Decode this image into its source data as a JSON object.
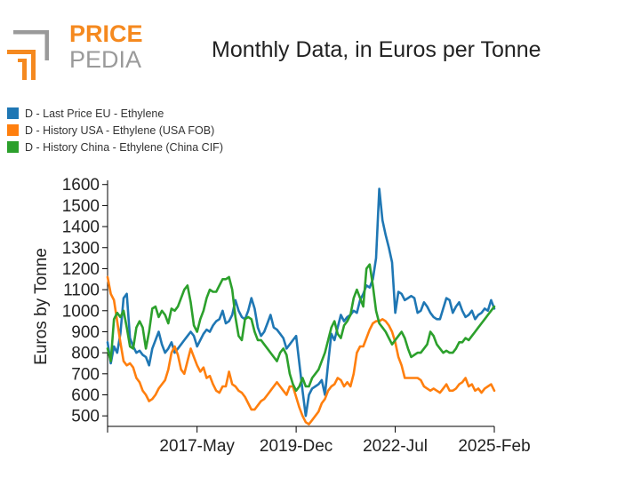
{
  "logo": {
    "line1": "PRICE",
    "line2": "PEDIA",
    "colors": {
      "accent": "#f5891f",
      "gray": "#9a9a9a"
    }
  },
  "title": "Monthly Data, in Euros per Tonne",
  "legend": [
    {
      "label": "D - Last Price EU - Ethylene",
      "color": "#1f77b4"
    },
    {
      "label": "D - History USA - Ethylene (USA FOB)",
      "color": "#ff7f0e"
    },
    {
      "label": "D - History China - Ethylene (China CIF)",
      "color": "#2ca02c"
    }
  ],
  "chart_data": {
    "type": "line",
    "title": "Monthly Data, in Euros per Tonne",
    "xlabel": "",
    "ylabel": "Euros by Tonne",
    "x_start": "2015-01",
    "xlim_index": [
      0,
      121
    ],
    "xticks": [
      {
        "index": 0,
        "label": ""
      },
      {
        "index": 28,
        "label": "2017-May"
      },
      {
        "index": 59,
        "label": "2019-Dec"
      },
      {
        "index": 90,
        "label": "2022-Jul"
      },
      {
        "index": 121,
        "label": "2025-Feb"
      }
    ],
    "ylim": [
      450,
      1620
    ],
    "yticks": [
      500,
      600,
      700,
      800,
      900,
      1000,
      1100,
      1200,
      1300,
      1400,
      1500,
      1600
    ],
    "grid": false,
    "series": [
      {
        "name": "D - Last Price EU - Ethylene",
        "color": "#1f77b4",
        "values": [
          850,
          750,
          830,
          800,
          890,
          1060,
          1080,
          870,
          830,
          800,
          810,
          790,
          780,
          740,
          820,
          860,
          900,
          840,
          800,
          820,
          850,
          800,
          820,
          840,
          860,
          880,
          900,
          880,
          830,
          860,
          890,
          910,
          900,
          930,
          950,
          960,
          1000,
          940,
          950,
          980,
          1050,
          1000,
          970,
          960,
          1000,
          1060,
          1010,
          920,
          880,
          900,
          940,
          980,
          920,
          910,
          890,
          870,
          820,
          840,
          860,
          880,
          750,
          620,
          500,
          600,
          630,
          640,
          650,
          670,
          600,
          750,
          890,
          860,
          920,
          980,
          950,
          970,
          980,
          1000,
          990,
          1050,
          1080,
          1120,
          1110,
          1150,
          1250,
          1580,
          1430,
          1360,
          1300,
          1230,
          990,
          1090,
          1080,
          1050,
          1060,
          1070,
          1060,
          990,
          1000,
          1040,
          1020,
          990,
          970,
          960,
          960,
          1010,
          1060,
          1050,
          990,
          1020,
          1040,
          1000,
          970,
          980,
          1000,
          960,
          980,
          990,
          1010,
          1000,
          1050,
          1010
        ]
      },
      {
        "name": "D - History USA - Ethylene (USA FOB)",
        "color": "#ff7f0e",
        "values": [
          1160,
          1080,
          1050,
          950,
          850,
          760,
          740,
          750,
          730,
          680,
          660,
          620,
          600,
          570,
          580,
          600,
          630,
          650,
          670,
          720,
          800,
          830,
          790,
          720,
          700,
          760,
          820,
          780,
          740,
          710,
          730,
          680,
          690,
          650,
          620,
          610,
          640,
          640,
          710,
          650,
          640,
          620,
          610,
          590,
          560,
          530,
          530,
          550,
          570,
          580,
          600,
          620,
          640,
          660,
          640,
          620,
          600,
          640,
          640,
          590,
          540,
          500,
          470,
          460,
          480,
          500,
          520,
          560,
          580,
          620,
          640,
          650,
          680,
          670,
          640,
          660,
          640,
          700,
          800,
          830,
          830,
          870,
          910,
          940,
          950,
          950,
          960,
          950,
          930,
          900,
          850,
          780,
          740,
          680,
          680,
          680,
          680,
          680,
          670,
          640,
          630,
          620,
          630,
          620,
          610,
          630,
          650,
          620,
          620,
          630,
          650,
          660,
          680,
          640,
          650,
          620,
          630,
          610,
          630,
          640,
          650,
          620
        ]
      },
      {
        "name": "D - History China - Ethylene (China CIF)",
        "color": "#2ca02c",
        "values": [
          820,
          760,
          960,
          990,
          970,
          1000,
          920,
          830,
          820,
          920,
          950,
          920,
          820,
          900,
          1010,
          1020,
          970,
          1000,
          980,
          940,
          1010,
          1000,
          1020,
          1060,
          1100,
          1120,
          1040,
          930,
          900,
          960,
          1000,
          1060,
          1100,
          1090,
          1090,
          1120,
          1150,
          1150,
          1160,
          1100,
          970,
          880,
          860,
          960,
          970,
          960,
          900,
          860,
          860,
          840,
          820,
          800,
          780,
          760,
          800,
          820,
          790,
          700,
          650,
          620,
          640,
          680,
          640,
          640,
          680,
          700,
          720,
          760,
          800,
          860,
          920,
          950,
          890,
          870,
          930,
          950,
          980,
          1060,
          1100,
          1060,
          1020,
          1200,
          1220,
          1120,
          1000,
          940,
          920,
          900,
          870,
          840,
          860,
          880,
          900,
          870,
          820,
          780,
          790,
          800,
          800,
          820,
          840,
          900,
          880,
          840,
          820,
          800,
          810,
          800,
          800,
          820,
          850,
          850,
          870,
          860,
          880,
          900,
          920,
          940,
          960,
          980,
          1000,
          1020
        ]
      }
    ]
  }
}
